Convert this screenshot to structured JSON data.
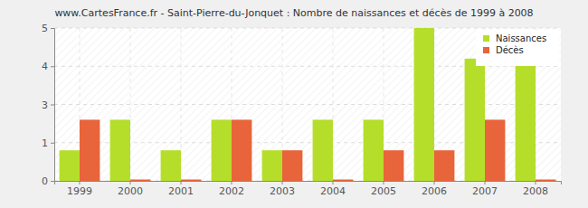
{
  "chart_data": {
    "type": "bar",
    "title": "www.CartesFrance.fr - Saint-Pierre-du-Jonquet : Nombre de naissances et décès de 1999 à 2008",
    "categories": [
      "1999",
      "2000",
      "2001",
      "2002",
      "2003",
      "2004",
      "2005",
      "2006",
      "2007",
      "2008"
    ],
    "series": [
      {
        "name": "Naissances",
        "color": "#b5de2a",
        "values": [
          1,
          2,
          1,
          2,
          1,
          2,
          2,
          5,
          4,
          4
        ]
      },
      {
        "name": "Décès",
        "color": "#e8643a",
        "values": [
          2,
          0,
          0,
          2,
          1,
          0,
          1,
          1,
          2,
          0
        ]
      }
    ],
    "ylim": [
      0,
      5
    ],
    "yticks": [
      0,
      {
        "value": 1.25,
        "label": "1"
      },
      {
        "value": 2.5,
        "label": "3"
      },
      {
        "value": 3.75,
        "label": "4"
      },
      5
    ],
    "grid": true,
    "legend": "top-right"
  }
}
